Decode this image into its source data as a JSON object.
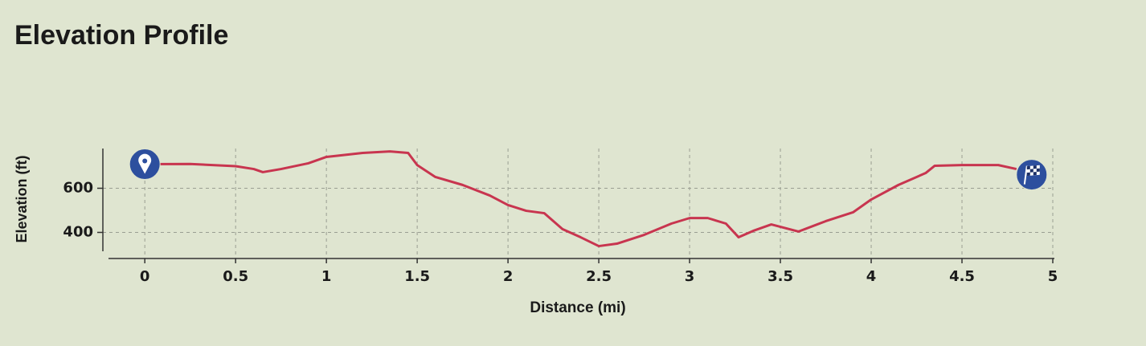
{
  "chart_data": {
    "type": "line",
    "title": "Elevation Profile",
    "x_label": "Distance (mi)",
    "y_label": "Elevation (ft)",
    "x": [
      0,
      0.25,
      0.5,
      0.6,
      0.65,
      0.75,
      0.9,
      1.0,
      1.2,
      1.35,
      1.45,
      1.5,
      1.6,
      1.75,
      1.9,
      2.0,
      2.1,
      2.2,
      2.3,
      2.4,
      2.5,
      2.6,
      2.75,
      2.9,
      3.0,
      3.1,
      3.2,
      3.27,
      3.35,
      3.45,
      3.6,
      3.75,
      3.9,
      4.0,
      4.15,
      4.3,
      4.35,
      4.5,
      4.7,
      4.8
    ],
    "series": [
      {
        "color": "#c8354f",
        "values": [
          709,
          710,
          700,
          687,
          673,
          687,
          713,
          742,
          760,
          767,
          760,
          705,
          651,
          615,
          567,
          524,
          498,
          487,
          415,
          378,
          338,
          349,
          389,
          440,
          465,
          465,
          440,
          378,
          407,
          436,
          404,
          451,
          491,
          549,
          615,
          669,
          702,
          705,
          705,
          687
        ]
      }
    ],
    "xlim": [
      -0.2,
      5
    ],
    "xticks": [
      0,
      0.5,
      1,
      1.5,
      2,
      2.5,
      3,
      3.5,
      4,
      4.5,
      5
    ],
    "ylim": [
      300,
      780
    ],
    "yticks": [
      400,
      600
    ],
    "grid": true
  }
}
